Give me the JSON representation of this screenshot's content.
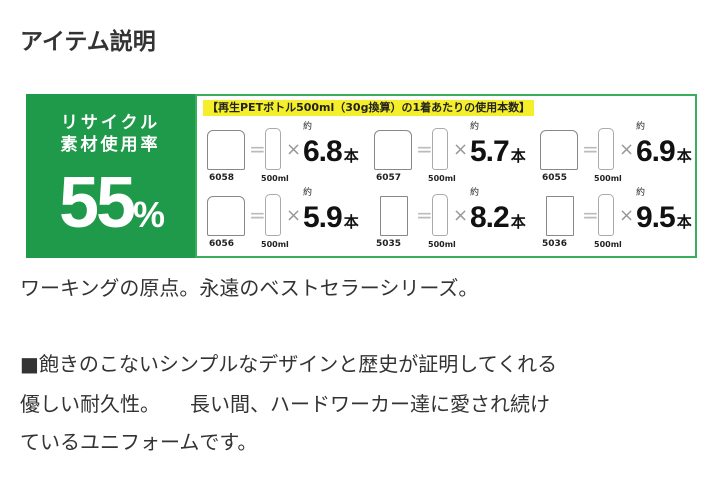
{
  "title": "アイテム説明",
  "banner": {
    "label_line1": "リサイクル",
    "label_line2": "素材使用率",
    "rate_value": "55",
    "rate_unit": "%",
    "header": "【再生PETボトル500ml（30g換算）の1着あたりの使用本数】",
    "approx": "約",
    "unit": "本",
    "bottle_label": "500ml",
    "items": [
      {
        "code": "6058",
        "count": "6.8",
        "type": "jacket"
      },
      {
        "code": "6057",
        "count": "5.7",
        "type": "shirt"
      },
      {
        "code": "6055",
        "count": "6.9",
        "type": "jacket"
      },
      {
        "code": "6056",
        "count": "5.9",
        "type": "shirt"
      },
      {
        "code": "5035",
        "count": "8.2",
        "type": "pants"
      },
      {
        "code": "5036",
        "count": "9.5",
        "type": "pants"
      }
    ],
    "colors": {
      "green": "#1f9a4a",
      "highlight": "#f5ee2a"
    }
  },
  "description": {
    "line1": "ワーキングの原点。永遠のベストセラーシリーズ。",
    "line2": "■飽きのこないシンプルなデザインと歴史が証明してくれる",
    "line3": "優しい耐久性。　　長い間、ハードワーカー達に愛され続け",
    "line4": "ているユニフォームです。"
  }
}
